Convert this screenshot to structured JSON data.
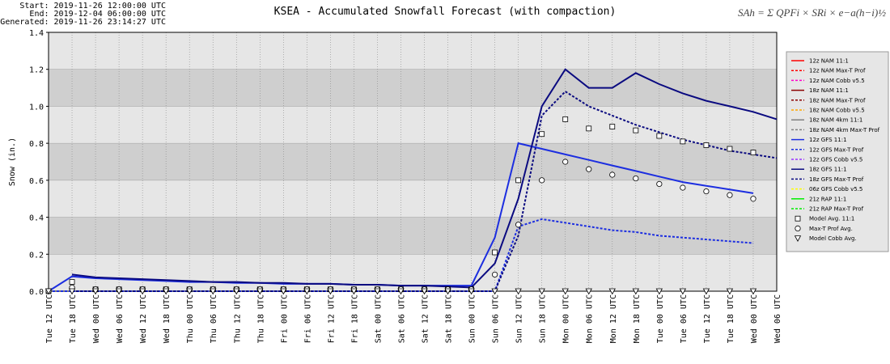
{
  "chart_data": {
    "type": "line",
    "title": "KSEA - Accumulated Snowfall Forecast (with compaction)",
    "info": [
      "Start: 2019-11-26 12:00:00 UTC",
      "End: 2019-12-04 06:00:00 UTC",
      "Generated: 2019-11-26 23:14:27 UTC"
    ],
    "formula": "SAh = Σ QPFi × SRi × e−a(h−i)½",
    "y_label": "Snow (in.)",
    "ylim": [
      0,
      1.4
    ],
    "yticks": [
      {
        "value": 0,
        "label": "0.0"
      },
      0.2,
      0.4,
      0.6,
      0.8,
      {
        "value": 1,
        "label": "1.0"
      },
      1.2,
      1.4
    ],
    "grid": true,
    "legend": "right",
    "categories": [
      "Tue 12 UTC",
      "Tue 18 UTC",
      "Wed 00 UTC",
      "Wed 06 UTC",
      "Wed 12 UTC",
      "Wed 18 UTC",
      "Thu 00 UTC",
      "Thu 06 UTC",
      "Thu 12 UTC",
      "Thu 18 UTC",
      "Fri 00 UTC",
      "Fri 06 UTC",
      "Fri 12 UTC",
      "Fri 18 UTC",
      "Sat 00 UTC",
      "Sat 06 UTC",
      "Sat 12 UTC",
      "Sat 18 UTC",
      "Sun 00 UTC",
      "Sun 06 UTC",
      "Sun 12 UTC",
      "Sun 18 UTC",
      "Mon 00 UTC",
      "Mon 06 UTC",
      "Mon 12 UTC",
      "Mon 18 UTC",
      "Tue 00 UTC",
      "Tue 06 UTC",
      "Tue 12 UTC",
      "Tue 18 UTC",
      "Wed 00 UTC",
      "Wed 06 UTC"
    ],
    "series": [
      {
        "name": "12z NAM 11:1",
        "color": "#ff0000",
        "dash": "solid",
        "values": [
          null,
          null,
          null,
          null,
          null,
          null,
          null,
          null,
          null,
          null,
          null,
          null,
          null,
          null,
          null,
          null,
          null,
          null,
          null,
          null,
          null,
          null,
          null,
          null,
          null,
          null,
          null,
          null,
          null,
          null,
          null,
          null
        ]
      },
      {
        "name": "12z NAM Max-T Prof",
        "color": "#ff0000",
        "dash": "dashed",
        "values": [
          null,
          null,
          null,
          null,
          null,
          null,
          null,
          null,
          null,
          null,
          null,
          null,
          null,
          null,
          null,
          null,
          null,
          null,
          null,
          null,
          null,
          null,
          null,
          null,
          null,
          null,
          null,
          null,
          null,
          null,
          null,
          null
        ]
      },
      {
        "name": "12z NAM Cobb v5.5",
        "color": "#ff00cc",
        "dash": "dashed",
        "values": [
          null,
          null,
          null,
          null,
          null,
          null,
          null,
          null,
          null,
          null,
          null,
          null,
          null,
          null,
          null,
          null,
          null,
          null,
          null,
          null,
          null,
          null,
          null,
          null,
          null,
          null,
          null,
          null,
          null,
          null,
          null,
          null
        ]
      },
      {
        "name": "18z NAM 11:1",
        "color": "#8b0000",
        "dash": "solid",
        "values": [
          null,
          null,
          null,
          null,
          null,
          null,
          null,
          null,
          null,
          null,
          null,
          null,
          null,
          null,
          null,
          null,
          null,
          null,
          null,
          null,
          null,
          null,
          null,
          null,
          null,
          null,
          null,
          null,
          null,
          null,
          null,
          null
        ]
      },
      {
        "name": "18z NAM Max-T Prof",
        "color": "#8b0000",
        "dash": "dashed",
        "values": [
          null,
          null,
          null,
          null,
          null,
          null,
          null,
          null,
          null,
          null,
          null,
          null,
          null,
          null,
          null,
          null,
          null,
          null,
          null,
          null,
          null,
          null,
          null,
          null,
          null,
          null,
          null,
          null,
          null,
          null,
          null,
          null
        ]
      },
      {
        "name": "18z NAM Cobb v5.5",
        "color": "#ffa500",
        "dash": "dashed",
        "values": [
          null,
          null,
          null,
          null,
          null,
          null,
          null,
          null,
          null,
          null,
          null,
          null,
          null,
          null,
          null,
          null,
          null,
          null,
          null,
          null,
          null,
          null,
          null,
          null,
          null,
          null,
          null,
          null,
          null,
          null,
          null,
          null
        ]
      },
      {
        "name": "18z NAM 4km 11:1",
        "color": "#808080",
        "dash": "solid",
        "values": [
          null,
          null,
          null,
          null,
          null,
          null,
          null,
          null,
          null,
          null,
          null,
          null,
          null,
          null,
          null,
          null,
          null,
          null,
          null,
          null,
          null,
          null,
          null,
          null,
          null,
          null,
          null,
          null,
          null,
          null,
          null,
          null
        ]
      },
      {
        "name": "18z NAM 4km Max-T Prof",
        "color": "#808080",
        "dash": "dashed",
        "values": [
          null,
          null,
          null,
          null,
          null,
          null,
          null,
          null,
          null,
          null,
          null,
          null,
          null,
          null,
          null,
          null,
          null,
          null,
          null,
          null,
          null,
          null,
          null,
          null,
          null,
          null,
          null,
          null,
          null,
          null,
          null,
          null
        ]
      },
      {
        "name": "12z GFS 11:1",
        "color": "#1c2ee0",
        "dash": "solid",
        "values": [
          0,
          0.08,
          0.07,
          0.065,
          0.06,
          0.055,
          0.05,
          0.05,
          0.045,
          0.045,
          0.04,
          0.04,
          0.04,
          0.035,
          0.035,
          0.03,
          0.03,
          0.03,
          0.03,
          0.29,
          0.8,
          0.77,
          0.74,
          0.71,
          0.68,
          0.65,
          0.62,
          0.59,
          0.57,
          0.55,
          0.53,
          null
        ]
      },
      {
        "name": "12z GFS Max-T Prof",
        "color": "#1c2ee0",
        "dash": "dashed",
        "values": [
          0,
          0,
          0,
          0,
          0,
          0,
          0,
          0,
          0,
          0,
          0,
          0,
          0,
          0,
          0,
          0,
          0,
          0,
          0,
          0,
          0.35,
          0.39,
          0.37,
          0.35,
          0.33,
          0.32,
          0.3,
          0.29,
          0.28,
          0.27,
          0.26,
          null
        ]
      },
      {
        "name": "12z GFS Cobb v5.5",
        "color": "#9933ff",
        "dash": "dashed",
        "values": [
          null,
          null,
          null,
          null,
          null,
          null,
          null,
          null,
          null,
          null,
          null,
          null,
          null,
          null,
          null,
          null,
          null,
          null,
          null,
          null,
          null,
          null,
          null,
          null,
          null,
          null,
          null,
          null,
          null,
          null,
          null,
          null
        ]
      },
      {
        "name": "18z GFS 11:1",
        "color": "#0a0a80",
        "dash": "solid",
        "values": [
          null,
          0.09,
          0.075,
          0.07,
          0.065,
          0.06,
          0.055,
          0.05,
          0.05,
          0.045,
          0.045,
          0.04,
          0.04,
          0.035,
          0.035,
          0.03,
          0.03,
          0.025,
          0.02,
          0.15,
          0.5,
          1.0,
          1.2,
          1.1,
          1.1,
          1.18,
          1.12,
          1.07,
          1.03,
          1.0,
          0.97,
          0.93
        ]
      },
      {
        "name": "18z GFS Max-T Prof",
        "color": "#0a0a80",
        "dash": "dashed",
        "values": [
          null,
          0,
          0,
          0,
          0,
          0,
          0,
          0,
          0,
          0,
          0,
          0,
          0,
          0,
          0,
          0,
          0,
          0,
          0,
          0,
          0.3,
          0.95,
          1.08,
          1.0,
          0.95,
          0.9,
          0.86,
          0.82,
          0.79,
          0.76,
          0.74,
          0.72
        ]
      },
      {
        "name": "06z GFS Cobb v5.5",
        "color": "#ffff00",
        "dash": "dashed",
        "values": [
          null,
          null,
          null,
          null,
          null,
          null,
          null,
          null,
          null,
          null,
          null,
          null,
          null,
          null,
          null,
          null,
          null,
          null,
          null,
          null,
          null,
          null,
          null,
          null,
          null,
          null,
          null,
          null,
          null,
          null,
          null,
          null
        ]
      },
      {
        "name": "21z RAP 11:1",
        "color": "#00ee00",
        "dash": "solid",
        "values": [
          null,
          null,
          null,
          null,
          null,
          null,
          null,
          null,
          null,
          null,
          null,
          null,
          null,
          null,
          null,
          null,
          null,
          null,
          null,
          null,
          null,
          null,
          null,
          null,
          null,
          null,
          null,
          null,
          null,
          null,
          null,
          null
        ]
      },
      {
        "name": "21z RAP Max-T Prof",
        "color": "#00ee00",
        "dash": "dashed",
        "values": [
          null,
          null,
          null,
          null,
          null,
          null,
          null,
          null,
          null,
          null,
          null,
          null,
          null,
          null,
          null,
          null,
          null,
          null,
          null,
          null,
          null,
          null,
          null,
          null,
          null,
          null,
          null,
          null,
          null,
          null,
          null,
          null
        ]
      },
      {
        "name": "Model Avg. 11:1",
        "color": "#000000",
        "marker": "square",
        "values": [
          0,
          0.05,
          0.01,
          0.01,
          0.01,
          0.01,
          0.01,
          0.01,
          0.01,
          0.01,
          0.01,
          0.01,
          0.01,
          0.01,
          0.01,
          0.01,
          0.01,
          0.01,
          0.01,
          0.21,
          0.6,
          0.85,
          0.93,
          0.88,
          0.89,
          0.87,
          0.84,
          0.81,
          0.79,
          0.77,
          0.75,
          null
        ]
      },
      {
        "name": "Max-T Prof Avg.",
        "color": "#000000",
        "marker": "circle",
        "values": [
          0,
          0.02,
          0.01,
          0.01,
          0.01,
          0.01,
          0.01,
          0.01,
          0.01,
          0.01,
          0.01,
          0.01,
          0.01,
          0.01,
          0.01,
          0.01,
          0.01,
          0.01,
          0.01,
          0.09,
          0.36,
          0.6,
          0.7,
          0.66,
          0.63,
          0.61,
          0.58,
          0.56,
          0.54,
          0.52,
          0.5,
          null
        ]
      },
      {
        "name": "Model Cobb Avg.",
        "color": "#000000",
        "marker": "triangle",
        "values": [
          0,
          0,
          0,
          0,
          0,
          0,
          0,
          0,
          0,
          0,
          0,
          0,
          0,
          0,
          0,
          0,
          0,
          0,
          0,
          0,
          0,
          0,
          0,
          0,
          0,
          0,
          0,
          0,
          0,
          0,
          0,
          null
        ]
      }
    ]
  }
}
